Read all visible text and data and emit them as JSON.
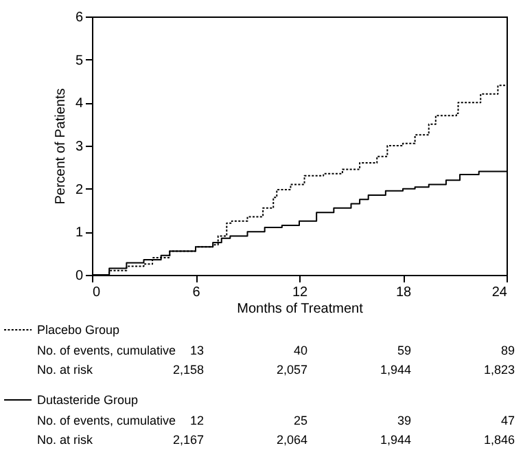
{
  "chart_data": {
    "type": "step",
    "xlabel": "Months of Treatment",
    "ylabel": "Percent of Patients",
    "xlim": [
      0,
      24
    ],
    "xticks": [
      0,
      6,
      12,
      18,
      24
    ],
    "ylim": [
      0,
      6
    ],
    "yticks": [
      0,
      1,
      2,
      3,
      4,
      5,
      6
    ],
    "grid": false,
    "legend": "bottom",
    "marker": "none",
    "series": [
      {
        "name": "Placebo Group",
        "color": "#000000",
        "line_style": "dotted",
        "x": [
          0,
          1,
          2,
          3,
          3.5,
          4.5,
          6,
          7,
          7.3,
          7.8,
          8.1,
          9,
          9.9,
          10.5,
          10.7,
          11.5,
          12.3,
          13.4,
          14.5,
          15.5,
          16.5,
          17.1,
          18,
          18.7,
          19.5,
          19.9,
          21.1,
          21.2,
          22.5,
          23.5,
          24
        ],
        "values": [
          0,
          0.1,
          0.2,
          0.25,
          0.4,
          0.55,
          0.65,
          0.7,
          0.9,
          1.2,
          1.25,
          1.35,
          1.55,
          1.8,
          1.98,
          2.1,
          2.3,
          2.35,
          2.45,
          2.6,
          2.75,
          3.0,
          3.05,
          3.25,
          3.5,
          3.7,
          3.75,
          4.0,
          4.2,
          4.4,
          4.4
        ]
      },
      {
        "name": "Dutasteride Group",
        "color": "#000000",
        "line_style": "solid",
        "x": [
          0,
          1,
          2,
          3,
          4,
          4.5,
          6,
          7,
          7.5,
          8,
          9,
          10,
          11,
          12,
          13,
          14,
          15,
          15.5,
          16,
          17,
          18,
          18.7,
          19.5,
          20.5,
          21.3,
          22.4,
          24
        ],
        "values": [
          0,
          0.15,
          0.28,
          0.35,
          0.45,
          0.55,
          0.65,
          0.75,
          0.85,
          0.9,
          1.0,
          1.1,
          1.15,
          1.25,
          1.45,
          1.55,
          1.65,
          1.75,
          1.85,
          1.95,
          2.0,
          2.04,
          2.1,
          2.2,
          2.33,
          2.4,
          2.4
        ]
      }
    ],
    "annotations": [
      "No. of events, cumulative",
      "13",
      "40",
      "59",
      "89",
      "No. at risk",
      "2,158",
      "2,057",
      "1,944",
      "1,823",
      "No. of events, cumulative",
      "12",
      "25",
      "39",
      "47",
      "No. at risk",
      "2,167",
      "2,064",
      "1,944",
      "1,846"
    ]
  }
}
